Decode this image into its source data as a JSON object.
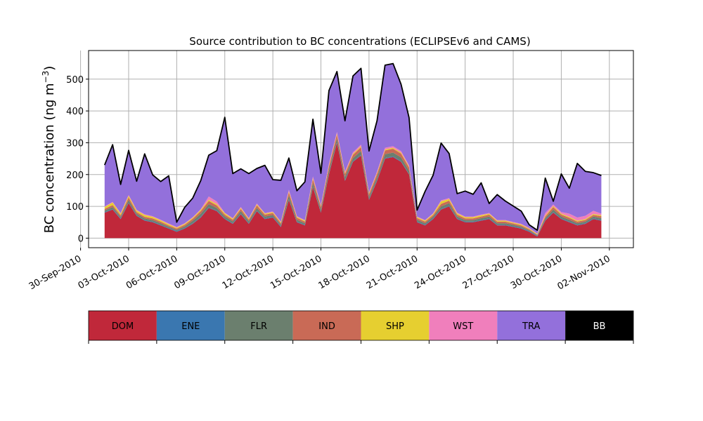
{
  "chart_data": {
    "type": "area",
    "title": "Source contribution to BC concentrations (ECLIPSEv6 and CAMS)",
    "ylabel": "BC concentration (ng m",
    "ylabel_sup": "−3",
    "ylabel_close": ")",
    "xlabel": "",
    "ylim": [
      -30,
      590
    ],
    "xlim": [
      "2010-09-30T12:00",
      "2010-11-03T12:00"
    ],
    "grid": true,
    "yticks": [
      0,
      100,
      200,
      300,
      400,
      500
    ],
    "xticks": [
      {
        "date": "2010-09-30",
        "label": "30-Sep-2010"
      },
      {
        "date": "2010-10-03",
        "label": "03-Oct-2010"
      },
      {
        "date": "2010-10-06",
        "label": "06-Oct-2010"
      },
      {
        "date": "2010-10-09",
        "label": "09-Oct-2010"
      },
      {
        "date": "2010-10-12",
        "label": "12-Oct-2010"
      },
      {
        "date": "2010-10-15",
        "label": "15-Oct-2010"
      },
      {
        "date": "2010-10-18",
        "label": "18-Oct-2010"
      },
      {
        "date": "2010-10-21",
        "label": "21-Oct-2010"
      },
      {
        "date": "2010-10-24",
        "label": "24-Oct-2010"
      },
      {
        "date": "2010-10-27",
        "label": "27-Oct-2010"
      },
      {
        "date": "2010-10-30",
        "label": "30-Oct-2010"
      },
      {
        "date": "2010-11-02",
        "label": "02-Nov-2010"
      }
    ],
    "x": [
      "2010-10-01T12:00",
      "2010-10-02T00:00",
      "2010-10-02T12:00",
      "2010-10-03T00:00",
      "2010-10-03T12:00",
      "2010-10-04T00:00",
      "2010-10-04T12:00",
      "2010-10-05T00:00",
      "2010-10-05T12:00",
      "2010-10-06T00:00",
      "2010-10-06T12:00",
      "2010-10-07T00:00",
      "2010-10-07T12:00",
      "2010-10-08T00:00",
      "2010-10-08T12:00",
      "2010-10-09T00:00",
      "2010-10-09T12:00",
      "2010-10-10T00:00",
      "2010-10-10T12:00",
      "2010-10-11T00:00",
      "2010-10-11T12:00",
      "2010-10-12T00:00",
      "2010-10-12T12:00",
      "2010-10-13T00:00",
      "2010-10-13T12:00",
      "2010-10-14T00:00",
      "2010-10-14T12:00",
      "2010-10-15T00:00",
      "2010-10-15T12:00",
      "2010-10-16T00:00",
      "2010-10-16T12:00",
      "2010-10-17T00:00",
      "2010-10-17T12:00",
      "2010-10-18T00:00",
      "2010-10-18T12:00",
      "2010-10-19T00:00",
      "2010-10-19T12:00",
      "2010-10-20T00:00",
      "2010-10-20T12:00",
      "2010-10-21T00:00",
      "2010-10-21T12:00",
      "2010-10-22T00:00",
      "2010-10-22T12:00",
      "2010-10-23T00:00",
      "2010-10-23T12:00",
      "2010-10-24T00:00",
      "2010-10-24T12:00",
      "2010-10-25T00:00",
      "2010-10-25T12:00",
      "2010-10-26T00:00",
      "2010-10-26T12:00",
      "2010-10-27T00:00",
      "2010-10-27T12:00",
      "2010-10-28T00:00",
      "2010-10-28T12:00",
      "2010-10-29T00:00",
      "2010-10-29T12:00",
      "2010-10-30T00:00",
      "2010-10-30T12:00",
      "2010-10-31T00:00",
      "2010-10-31T12:00",
      "2010-11-01T00:00",
      "2010-11-01T12:00"
    ],
    "series": [
      {
        "name": "DOM",
        "color": "#c0283a",
        "values": [
          80,
          90,
          60,
          110,
          70,
          55,
          50,
          40,
          30,
          20,
          30,
          45,
          65,
          95,
          85,
          60,
          45,
          75,
          45,
          85,
          60,
          65,
          35,
          120,
          50,
          40,
          160,
          80,
          200,
          300,
          180,
          240,
          260,
          120,
          180,
          250,
          255,
          240,
          200,
          50,
          40,
          60,
          90,
          100,
          60,
          50,
          50,
          55,
          60,
          40,
          40,
          35,
          30,
          20,
          5,
          55,
          80,
          60,
          50,
          40,
          45,
          60,
          55
        ]
      },
      {
        "name": "ENE",
        "color": "#3a77b0",
        "values": [
          2,
          2,
          2,
          2,
          2,
          2,
          2,
          2,
          2,
          2,
          2,
          2,
          2,
          2,
          2,
          2,
          2,
          2,
          2,
          2,
          2,
          2,
          2,
          2,
          2,
          2,
          2,
          2,
          2,
          2,
          2,
          2,
          2,
          2,
          2,
          2,
          2,
          2,
          2,
          2,
          2,
          2,
          2,
          2,
          2,
          2,
          2,
          2,
          2,
          2,
          2,
          2,
          2,
          2,
          2,
          2,
          2,
          2,
          2,
          2,
          2,
          2,
          2
        ]
      },
      {
        "name": "FLR",
        "color": "#6b7f6e",
        "values": [
          5,
          6,
          5,
          8,
          5,
          5,
          5,
          5,
          4,
          4,
          5,
          8,
          10,
          10,
          8,
          6,
          6,
          8,
          6,
          8,
          6,
          6,
          5,
          12,
          6,
          5,
          12,
          8,
          12,
          12,
          10,
          10,
          12,
          8,
          10,
          12,
          12,
          12,
          10,
          6,
          5,
          6,
          8,
          8,
          6,
          5,
          5,
          6,
          6,
          5,
          5,
          5,
          4,
          3,
          2,
          6,
          8,
          6,
          6,
          5,
          5,
          6,
          6
        ]
      },
      {
        "name": "IND",
        "color": "#c96a56",
        "values": [
          5,
          6,
          5,
          8,
          5,
          5,
          5,
          5,
          4,
          4,
          5,
          6,
          8,
          10,
          8,
          6,
          5,
          7,
          5,
          8,
          6,
          6,
          5,
          10,
          6,
          5,
          12,
          8,
          12,
          12,
          10,
          10,
          12,
          8,
          10,
          12,
          12,
          12,
          10,
          5,
          5,
          5,
          8,
          8,
          6,
          5,
          5,
          5,
          6,
          5,
          5,
          4,
          4,
          3,
          2,
          5,
          8,
          6,
          6,
          5,
          5,
          5,
          6
        ]
      },
      {
        "name": "SHP",
        "color": "#e6cf30",
        "values": [
          6,
          8,
          5,
          5,
          5,
          6,
          5,
          4,
          4,
          3,
          3,
          3,
          4,
          4,
          4,
          4,
          3,
          3,
          3,
          3,
          3,
          3,
          3,
          3,
          3,
          3,
          3,
          3,
          3,
          3,
          3,
          3,
          3,
          3,
          3,
          3,
          3,
          3,
          3,
          3,
          3,
          3,
          8,
          5,
          4,
          4,
          4,
          4,
          3,
          3,
          3,
          3,
          3,
          2,
          2,
          3,
          3,
          3,
          3,
          3,
          3,
          3,
          3
        ]
      },
      {
        "name": "WST",
        "color": "#f07fbc",
        "values": [
          2,
          2,
          2,
          3,
          2,
          2,
          2,
          2,
          2,
          2,
          2,
          2,
          2,
          10,
          8,
          2,
          2,
          3,
          2,
          3,
          2,
          2,
          2,
          5,
          2,
          2,
          5,
          3,
          5,
          5,
          4,
          5,
          5,
          3,
          4,
          5,
          5,
          5,
          4,
          2,
          2,
          2,
          3,
          3,
          2,
          2,
          2,
          2,
          2,
          2,
          2,
          2,
          2,
          2,
          2,
          8,
          5,
          5,
          10,
          10,
          10,
          10,
          5
        ]
      },
      {
        "name": "TRA",
        "color": "#9370db",
        "values": [
          130,
          180,
          90,
          140,
          90,
          190,
          130,
          120,
          150,
          15,
          50,
          60,
          90,
          130,
          160,
          300,
          140,
          120,
          140,
          110,
          150,
          100,
          130,
          100,
          80,
          120,
          180,
          100,
          230,
          190,
          160,
          240,
          240,
          130,
          160,
          260,
          260,
          210,
          150,
          20,
          90,
          120,
          180,
          140,
          60,
          80,
          70,
          100,
          30,
          80,
          60,
          50,
          40,
          10,
          10,
          110,
          10,
          120,
          80,
          170,
          140,
          120,
          120
        ]
      },
      {
        "name": "BB",
        "color": "#000000",
        "values": [
          0,
          0,
          0,
          0,
          0,
          0,
          0,
          0,
          0,
          0,
          0,
          0,
          0,
          0,
          0,
          0,
          0,
          0,
          0,
          0,
          0,
          0,
          0,
          0,
          0,
          0,
          0,
          0,
          0,
          0,
          0,
          0,
          0,
          0,
          0,
          0,
          0,
          0,
          0,
          0,
          0,
          0,
          0,
          0,
          0,
          0,
          0,
          0,
          0,
          0,
          0,
          0,
          0,
          0,
          0,
          0,
          0,
          0,
          0,
          0,
          0,
          0,
          0
        ]
      }
    ],
    "total_line_color": "#000000",
    "grid_color": "#b0b0b0"
  }
}
